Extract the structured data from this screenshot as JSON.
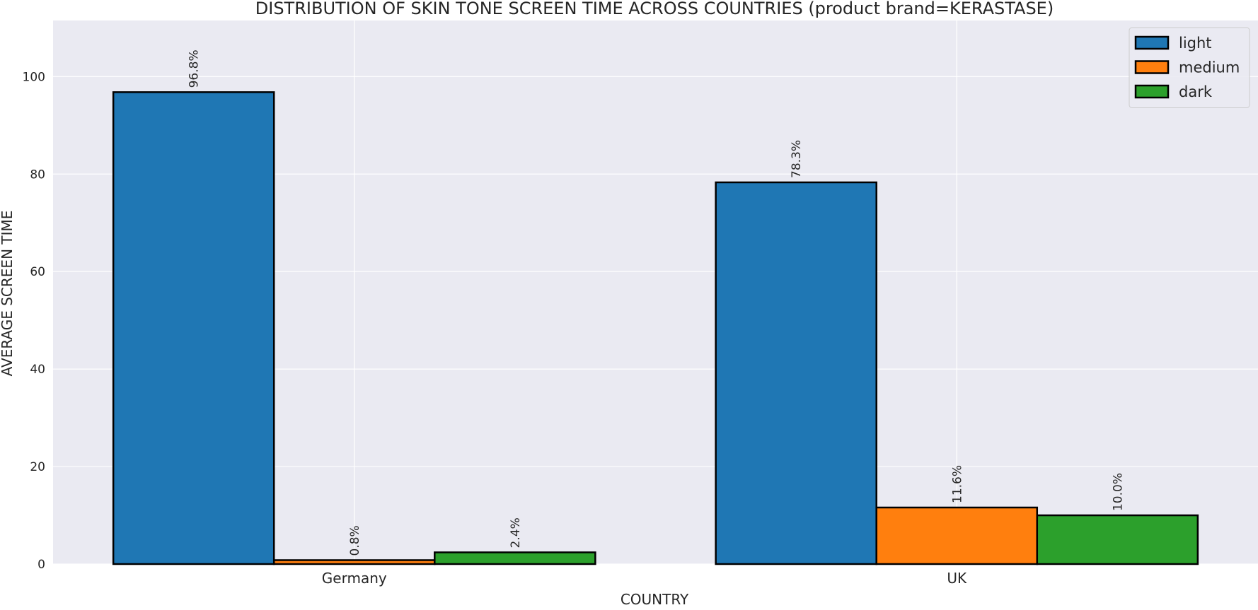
{
  "chart_data": {
    "type": "bar",
    "title": "DISTRIBUTION OF SKIN TONE SCREEN TIME ACROSS COUNTRIES (product brand=KERASTASE)",
    "xlabel": "COUNTRY",
    "ylabel": "AVERAGE SCREEN TIME",
    "categories": [
      "Germany",
      "UK"
    ],
    "series": [
      {
        "name": "light",
        "color": "#1f77b4",
        "values": [
          96.8,
          78.3
        ],
        "labels": [
          "96.8%",
          "78.3%"
        ]
      },
      {
        "name": "medium",
        "color": "#ff7f0e",
        "values": [
          0.8,
          11.6
        ],
        "labels": [
          "0.8%",
          "11.6%"
        ]
      },
      {
        "name": "dark",
        "color": "#2ca02c",
        "values": [
          2.4,
          10.0
        ],
        "labels": [
          "2.4%",
          "10.0%"
        ]
      }
    ],
    "ylim": [
      0,
      111.5
    ],
    "yticks": [
      0,
      20,
      40,
      60,
      80,
      100
    ],
    "grid": true,
    "legend_position": "top-right",
    "style": {
      "background": "#eaeaf2",
      "grid_color": "#ffffff",
      "edge_color": "#000000"
    }
  }
}
